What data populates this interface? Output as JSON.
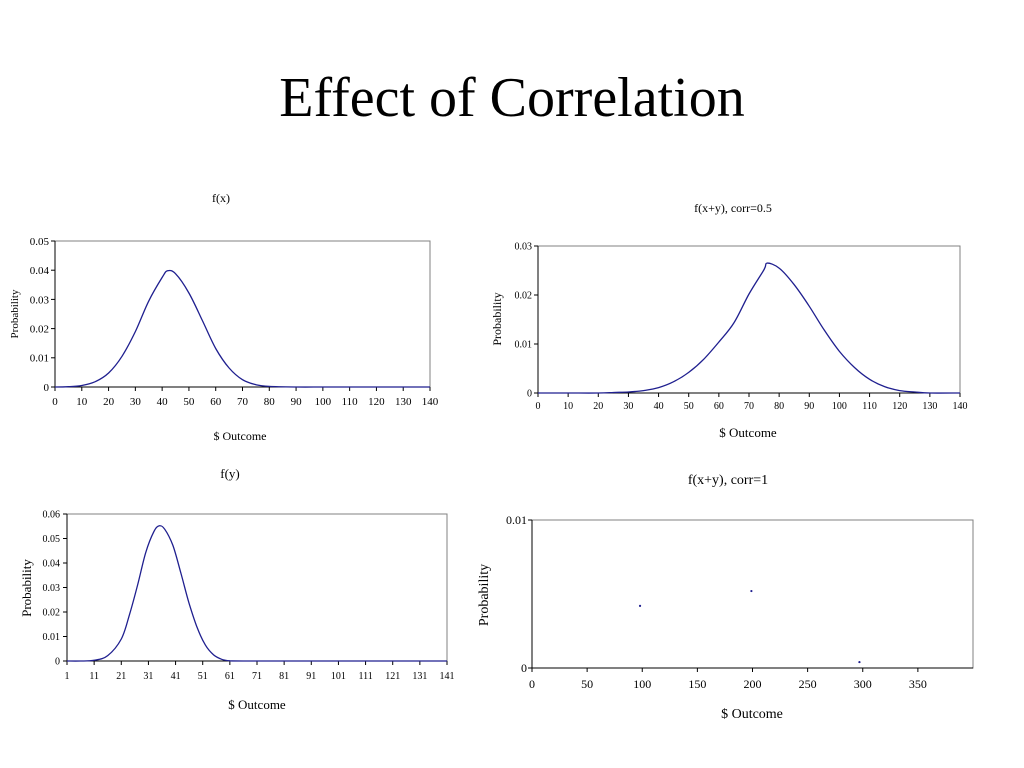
{
  "slide": {
    "title": "Effect of Correlation"
  },
  "colors": {
    "series": "#1f1f8f",
    "axis": "#000000",
    "frame": "#808080"
  },
  "chart_data": [
    {
      "id": "fx",
      "type": "line",
      "title": "f(x)",
      "xlabel": "$ Outcome",
      "ylabel": "Probability",
      "xlim": [
        0,
        140
      ],
      "ylim": [
        0,
        0.05
      ],
      "xticks": [
        "0",
        "10",
        "20",
        "30",
        "40",
        "50",
        "60",
        "70",
        "80",
        "90",
        "100",
        "110",
        "120",
        "130",
        "140"
      ],
      "yticks": [
        "0",
        "0.01",
        "0.02",
        "0.03",
        "0.04",
        "0.05"
      ],
      "series": [
        {
          "x": [
            0,
            5,
            10,
            15,
            20,
            25,
            30,
            35,
            40,
            42,
            45,
            50,
            55,
            60,
            65,
            70,
            75,
            80,
            90,
            100,
            110,
            120,
            130,
            140
          ],
          "y": [
            0,
            0.0001,
            0.0005,
            0.0018,
            0.0048,
            0.0105,
            0.019,
            0.0295,
            0.0375,
            0.0398,
            0.0388,
            0.0322,
            0.0228,
            0.0132,
            0.0065,
            0.0025,
            0.0008,
            0.0002,
            0,
            0,
            0,
            0,
            0,
            0
          ]
        }
      ],
      "grid": false,
      "legend": "none"
    },
    {
      "id": "fxy05",
      "type": "line",
      "title": "f(x+y), corr=0.5",
      "xlabel": "$ Outcome",
      "ylabel": "Probability",
      "xlim": [
        0,
        140
      ],
      "ylim": [
        0,
        0.03
      ],
      "xticks": [
        "0",
        "10",
        "20",
        "30",
        "40",
        "50",
        "60",
        "70",
        "80",
        "90",
        "100",
        "110",
        "120",
        "130",
        "140"
      ],
      "yticks": [
        "0",
        "0.01",
        "0.02",
        "0.03"
      ],
      "series": [
        {
          "x": [
            0,
            10,
            20,
            25,
            30,
            35,
            40,
            45,
            50,
            55,
            60,
            65,
            70,
            75,
            76,
            80,
            85,
            90,
            95,
            100,
            105,
            110,
            115,
            120,
            125,
            130,
            140
          ],
          "y": [
            0,
            0,
            0,
            0.0001,
            0.0002,
            0.0005,
            0.0011,
            0.0023,
            0.0042,
            0.0069,
            0.0104,
            0.0143,
            0.0202,
            0.0252,
            0.0265,
            0.0255,
            0.0221,
            0.0177,
            0.0128,
            0.0085,
            0.0052,
            0.0028,
            0.0013,
            0.0005,
            0.0002,
            0,
            0
          ]
        }
      ],
      "grid": false,
      "legend": "none"
    },
    {
      "id": "fy",
      "type": "line",
      "title": "f(y)",
      "xlabel": "$ Outcome",
      "ylabel": "Probability",
      "xlim": [
        1,
        141
      ],
      "ylim": [
        0,
        0.06
      ],
      "xticks": [
        "1",
        "11",
        "21",
        "31",
        "41",
        "51",
        "61",
        "71",
        "81",
        "91",
        "101",
        "111",
        "121",
        "131",
        "141"
      ],
      "yticks": [
        "0",
        "0.01",
        "0.02",
        "0.03",
        "0.04",
        "0.05",
        "0.06"
      ],
      "series": [
        {
          "x": [
            1,
            6,
            11,
            16,
            21,
            24,
            27,
            30,
            33,
            35,
            37,
            40,
            43,
            46,
            49,
            52,
            55,
            58,
            61,
            66,
            71,
            81,
            91,
            101,
            111,
            121,
            131,
            141
          ],
          "y": [
            0,
            0,
            0.0003,
            0.0022,
            0.009,
            0.0188,
            0.031,
            0.0442,
            0.0528,
            0.0552,
            0.0538,
            0.0472,
            0.0357,
            0.0235,
            0.0135,
            0.0065,
            0.0025,
            0.0007,
            0.0001,
            0,
            0,
            0,
            0,
            0,
            0,
            0,
            0,
            0
          ]
        }
      ],
      "grid": false,
      "legend": "none"
    },
    {
      "id": "fxy1",
      "type": "scatter",
      "title": "f(x+y), corr=1",
      "xlabel": "$ Outcome",
      "ylabel": "Probability",
      "xlim": [
        0,
        400
      ],
      "ylim": [
        0,
        0.01
      ],
      "xticks": [
        "0",
        "50",
        "100",
        "150",
        "200",
        "250",
        "300",
        "350"
      ],
      "yticks": [
        "0",
        "0.01"
      ],
      "series": [
        {
          "x": [
            98,
            199,
            297
          ],
          "y": [
            0.0042,
            0.0052,
            0.0004
          ]
        }
      ],
      "grid": false,
      "legend": "none"
    }
  ]
}
